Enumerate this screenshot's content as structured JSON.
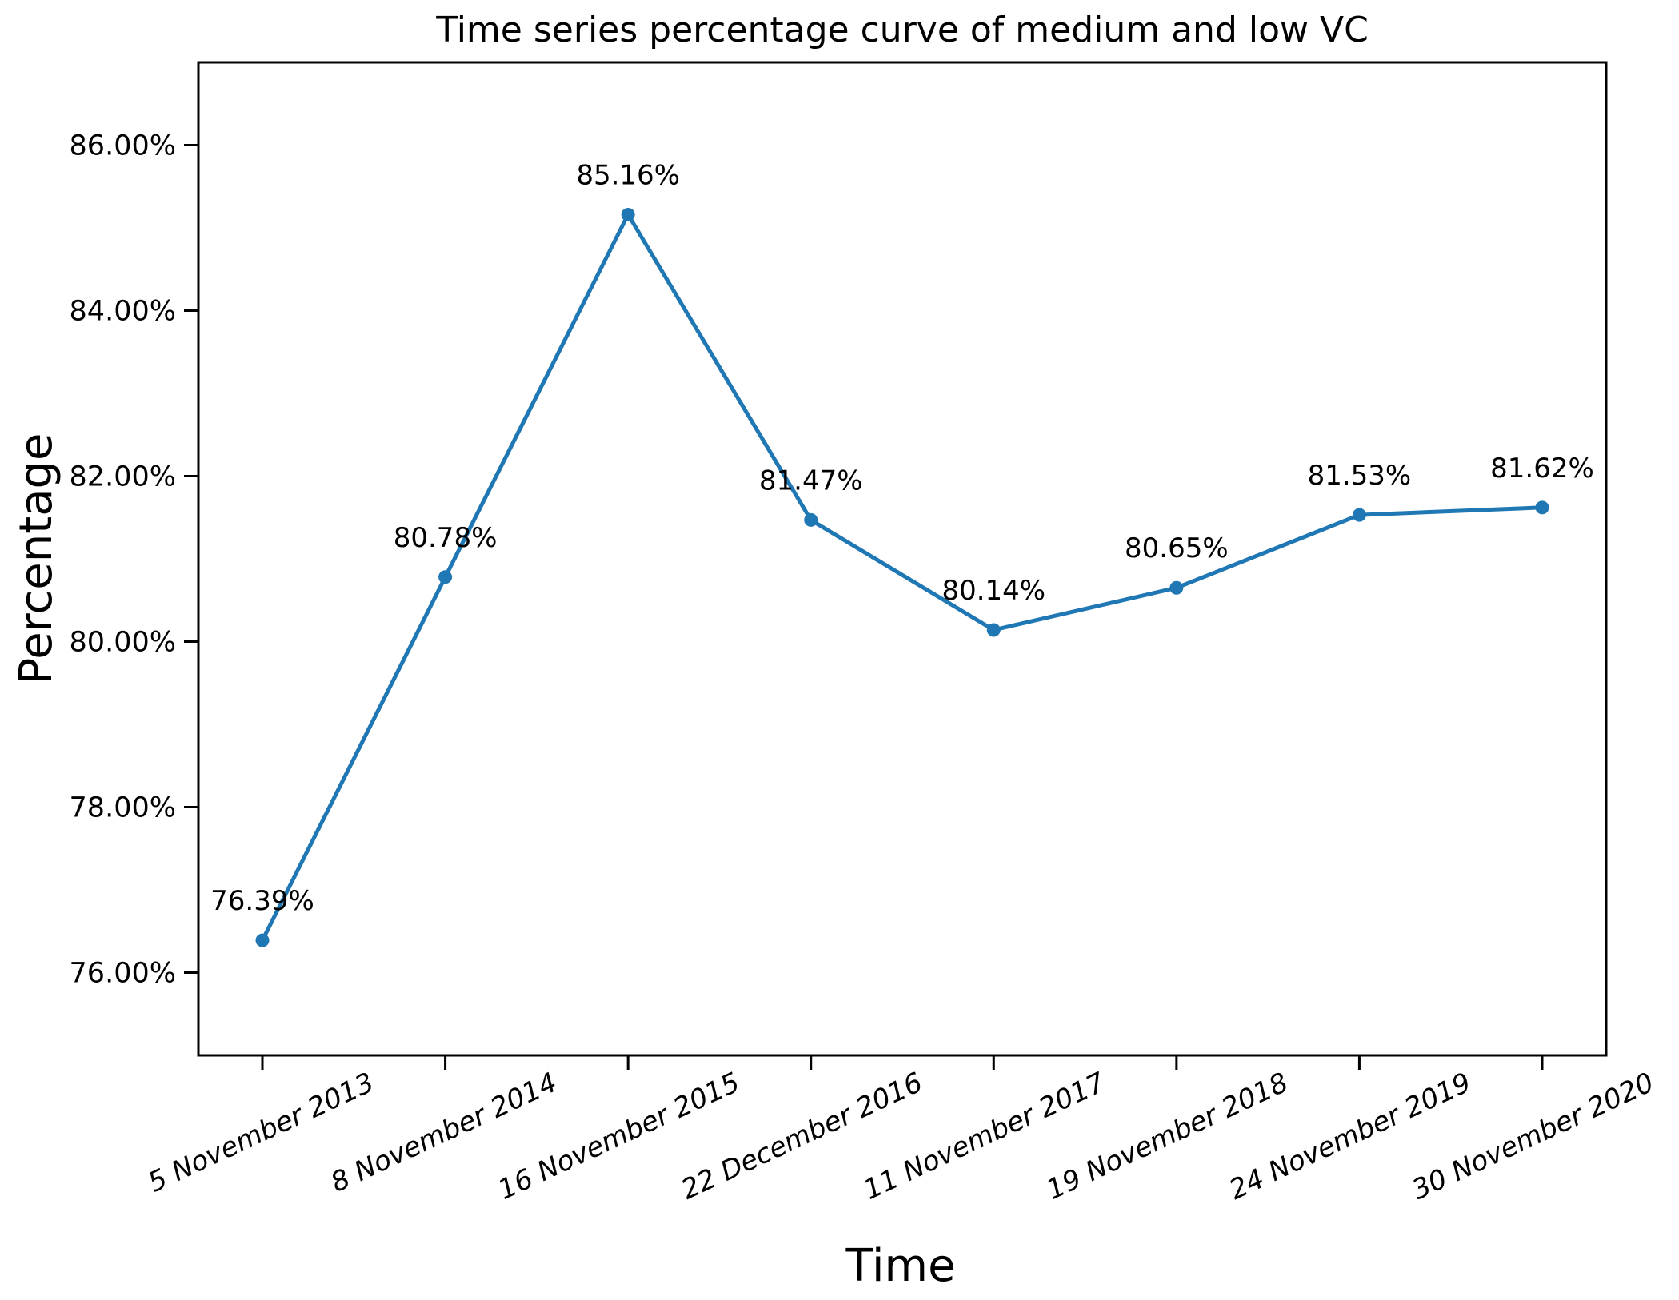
{
  "figure": {
    "background": "#ffffff"
  },
  "chart_data": {
    "type": "line",
    "title": "Time series percentage curve of medium and low VC",
    "xlabel": "Time",
    "ylabel": "Percentage",
    "categories": [
      "5 November 2013",
      "8 November 2014",
      "16 November 2015",
      "22 December 2016",
      "11 November 2017",
      "19 November 2018",
      "24 November 2019",
      "30 November 2020"
    ],
    "series": [
      {
        "color": "#1f77b4",
        "marker": "circle",
        "values": [
          76.39,
          80.78,
          85.16,
          81.47,
          80.14,
          80.65,
          81.53,
          81.62
        ],
        "point_labels": [
          "76.39%",
          "80.78%",
          "85.16%",
          "81.47%",
          "80.14%",
          "80.65%",
          "81.53%",
          "81.62%"
        ]
      }
    ],
    "ylim": [
      75.0,
      87.0
    ],
    "ytick_values": [
      76,
      78,
      80,
      82,
      84,
      86
    ],
    "ytick_labels": [
      "76.00%",
      "78.00%",
      "80.00%",
      "82.00%",
      "84.00%",
      "86.00%"
    ],
    "x_tick_rotation_deg": 25,
    "x_tick_fontstyle": "italic",
    "grid": false,
    "legend": "none",
    "axis_color": "#000000",
    "text_color": "#000000"
  }
}
